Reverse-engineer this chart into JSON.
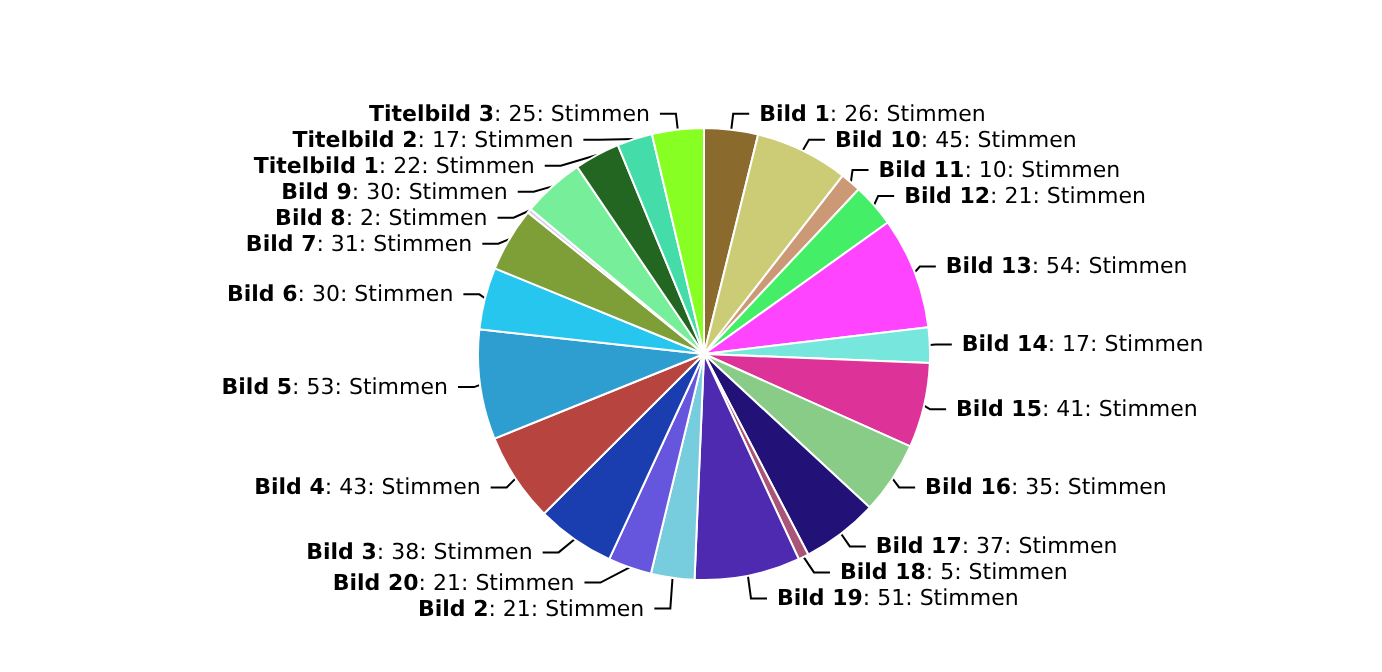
{
  "chart_data": {
    "type": "pie",
    "categories": [
      "Bild 1",
      "Bild 10",
      "Bild 11",
      "Bild 12",
      "Bild 13",
      "Bild 14",
      "Bild 15",
      "Bild 16",
      "Bild 17",
      "Bild 18",
      "Bild 19",
      "Bild 2",
      "Bild 20",
      "Bild 3",
      "Bild 4",
      "Bild 5",
      "Bild 6",
      "Bild 7",
      "Bild 8",
      "Bild 9",
      "Titelbild 1",
      "Titelbild 2",
      "Titelbild 3"
    ],
    "values": [
      26,
      45,
      10,
      21,
      54,
      17,
      41,
      35,
      37,
      5,
      51,
      21,
      21,
      38,
      43,
      53,
      30,
      31,
      2,
      30,
      22,
      17,
      25
    ],
    "value_labels": [
      ": 26: Stimmen",
      ": 45: Stimmen",
      ": 10: Stimmen",
      ": 21: Stimmen",
      ": 54: Stimmen",
      ": 17: Stimmen",
      ": 41: Stimmen",
      ": 35: Stimmen",
      ": 37: Stimmen",
      ": 5: Stimmen",
      ": 51: Stimmen",
      ": 21: Stimmen",
      ": 21: Stimmen",
      ": 38: Stimmen",
      ": 43: Stimmen",
      ": 53: Stimmen",
      ": 30: Stimmen",
      ": 31: Stimmen",
      ": 2: Stimmen",
      ": 30: Stimmen",
      ": 22: Stimmen",
      ": 17: Stimmen",
      ": 25: Stimmen"
    ],
    "colors": [
      "#8b6a2e",
      "#cccc77",
      "#cc9977",
      "#44ee66",
      "#ff44ff",
      "#77e6dd",
      "#dd3399",
      "#88cc88",
      "#221177",
      "#aa5577",
      "#4d2ab0",
      "#77ccdd",
      "#6655dd",
      "#1a3db0",
      "#b84440",
      "#2e9ed0",
      "#26c6ee",
      "#7e9e38",
      "#d8ccee",
      "#77ee99",
      "#226622",
      "#44ddaa",
      "#88ff22"
    ],
    "legend": false
  }
}
